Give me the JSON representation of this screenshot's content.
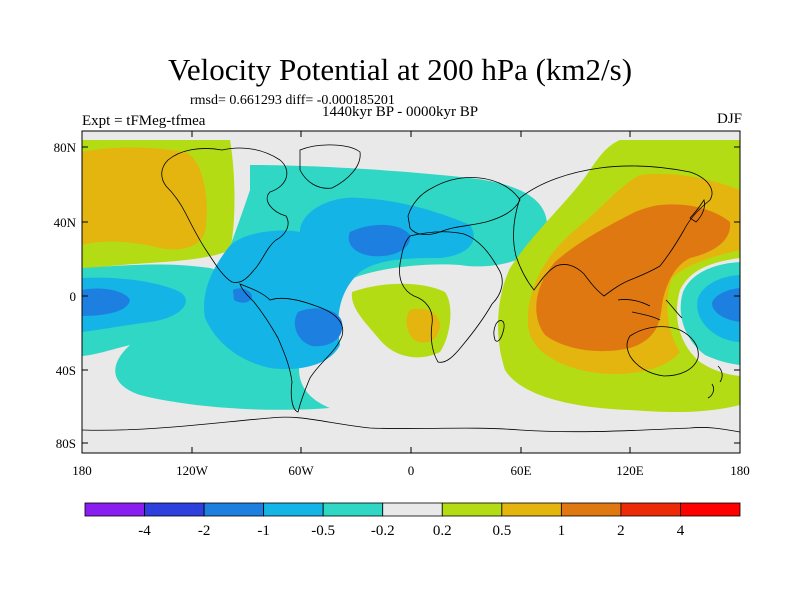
{
  "title": "Velocity Potential at 200 hPa (km2/s)",
  "stats_text": "rmsd= 0.661293 diff= -0.000185201",
  "experiment_text": "Expt = tFMeg-tfmea",
  "period_text": "1440kyr BP - 0000kyr BP",
  "season_text": "DJF",
  "lat_ticks": [
    "80N",
    "40N",
    "0",
    "40S",
    "80S"
  ],
  "lon_ticks": [
    "180",
    "120W",
    "60W",
    "0",
    "60E",
    "120E",
    "180"
  ],
  "colorbar": {
    "labels": [
      "-4",
      "-2",
      "-1",
      "-0.5",
      "-0.2",
      "0.2",
      "0.5",
      "1",
      "2",
      "4"
    ],
    "colors": [
      "#8a1ef0",
      "#2d3fdc",
      "#1d7fe0",
      "#14b4e6",
      "#2fd7c4",
      "#e9e9e9",
      "#b4dc14",
      "#e3b50e",
      "#e07812",
      "#ec2a08",
      "#ff0000"
    ]
  },
  "palette": {
    "neutral": "#e9e9e9",
    "teal": "#2fd7c4",
    "cyan": "#14b4e6",
    "blue": "#1d7fe0",
    "yellow_green": "#b4dc14",
    "gold": "#e3b50e",
    "orange": "#e07812",
    "coast": "#000000"
  }
}
